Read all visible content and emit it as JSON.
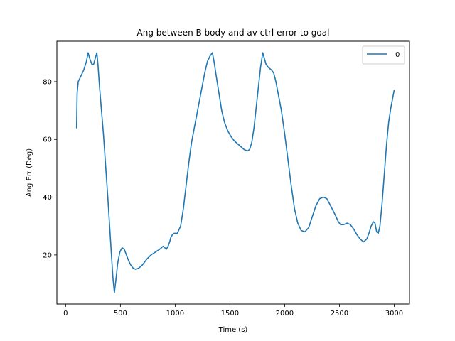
{
  "chart_data": {
    "type": "line",
    "title": "Ang between B body and av ctrl error to goal",
    "xlabel": "Time (s)",
    "ylabel": "Ang Err (Deg)",
    "xlim": [
      -80,
      3140
    ],
    "ylim": [
      3,
      94
    ],
    "xticks": [
      0,
      500,
      1000,
      1500,
      2000,
      2500,
      3000
    ],
    "yticks": [
      20,
      40,
      60,
      80
    ],
    "grid": false,
    "legend_position": "top-right",
    "series": [
      {
        "name": "0",
        "color": "#1f77b4",
        "points": [
          [
            100,
            64
          ],
          [
            105,
            76
          ],
          [
            115,
            80
          ],
          [
            140,
            82
          ],
          [
            165,
            84
          ],
          [
            190,
            87
          ],
          [
            205,
            90
          ],
          [
            220,
            88
          ],
          [
            240,
            86
          ],
          [
            255,
            86
          ],
          [
            270,
            88
          ],
          [
            285,
            90
          ],
          [
            295,
            86
          ],
          [
            310,
            78
          ],
          [
            325,
            71
          ],
          [
            345,
            62
          ],
          [
            365,
            51
          ],
          [
            385,
            40
          ],
          [
            405,
            28
          ],
          [
            420,
            19
          ],
          [
            432,
            12
          ],
          [
            445,
            7
          ],
          [
            458,
            11
          ],
          [
            475,
            17
          ],
          [
            495,
            21
          ],
          [
            515,
            22.5
          ],
          [
            535,
            22
          ],
          [
            555,
            20
          ],
          [
            575,
            18
          ],
          [
            595,
            16.5
          ],
          [
            615,
            15.5
          ],
          [
            640,
            15
          ],
          [
            670,
            15.5
          ],
          [
            700,
            16.5
          ],
          [
            740,
            18.5
          ],
          [
            780,
            20
          ],
          [
            820,
            21
          ],
          [
            860,
            22
          ],
          [
            890,
            23
          ],
          [
            905,
            22.5
          ],
          [
            920,
            22
          ],
          [
            935,
            23
          ],
          [
            950,
            24.5
          ],
          [
            960,
            26
          ],
          [
            975,
            27
          ],
          [
            990,
            27.5
          ],
          [
            1020,
            27.5
          ],
          [
            1050,
            30
          ],
          [
            1075,
            36
          ],
          [
            1100,
            44
          ],
          [
            1125,
            52
          ],
          [
            1150,
            59
          ],
          [
            1180,
            65
          ],
          [
            1210,
            71
          ],
          [
            1240,
            77
          ],
          [
            1270,
            83
          ],
          [
            1295,
            87
          ],
          [
            1320,
            89
          ],
          [
            1340,
            90
          ],
          [
            1355,
            87
          ],
          [
            1375,
            82
          ],
          [
            1400,
            76
          ],
          [
            1425,
            70
          ],
          [
            1450,
            66
          ],
          [
            1480,
            63
          ],
          [
            1510,
            61
          ],
          [
            1540,
            59.5
          ],
          [
            1570,
            58.5
          ],
          [
            1600,
            57.5
          ],
          [
            1630,
            56.5
          ],
          [
            1660,
            56
          ],
          [
            1680,
            56.5
          ],
          [
            1700,
            59
          ],
          [
            1720,
            64
          ],
          [
            1740,
            71
          ],
          [
            1760,
            78
          ],
          [
            1780,
            85
          ],
          [
            1800,
            90
          ],
          [
            1815,
            88
          ],
          [
            1830,
            86
          ],
          [
            1850,
            85
          ],
          [
            1880,
            84
          ],
          [
            1900,
            83
          ],
          [
            1920,
            80
          ],
          [
            1940,
            76
          ],
          [
            1970,
            70
          ],
          [
            2000,
            62
          ],
          [
            2030,
            53
          ],
          [
            2060,
            44
          ],
          [
            2090,
            36
          ],
          [
            2120,
            31
          ],
          [
            2150,
            28.5
          ],
          [
            2185,
            28
          ],
          [
            2220,
            29.5
          ],
          [
            2250,
            33
          ],
          [
            2285,
            37
          ],
          [
            2320,
            39.5
          ],
          [
            2355,
            40
          ],
          [
            2385,
            39.5
          ],
          [
            2420,
            37
          ],
          [
            2460,
            34
          ],
          [
            2490,
            31.5
          ],
          [
            2510,
            30.5
          ],
          [
            2540,
            30.5
          ],
          [
            2570,
            31
          ],
          [
            2600,
            30.5
          ],
          [
            2630,
            29
          ],
          [
            2660,
            27
          ],
          [
            2690,
            25.5
          ],
          [
            2720,
            24.5
          ],
          [
            2750,
            25.5
          ],
          [
            2770,
            27.5
          ],
          [
            2790,
            30
          ],
          [
            2810,
            31.5
          ],
          [
            2825,
            31
          ],
          [
            2840,
            28
          ],
          [
            2855,
            27.5
          ],
          [
            2870,
            30
          ],
          [
            2890,
            38
          ],
          [
            2910,
            48
          ],
          [
            2930,
            58
          ],
          [
            2950,
            66
          ],
          [
            2970,
            71
          ],
          [
            2985,
            74
          ],
          [
            3000,
            77
          ]
        ]
      }
    ]
  }
}
